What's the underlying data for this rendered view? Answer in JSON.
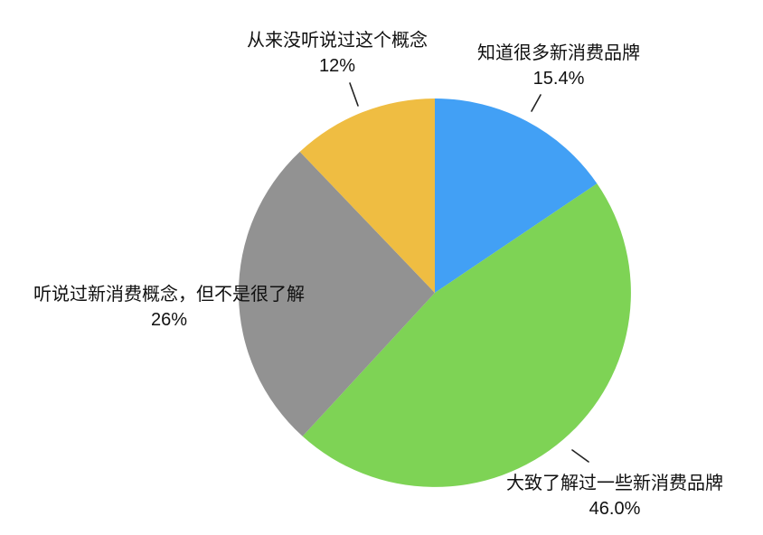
{
  "chart_data": {
    "type": "pie",
    "title": "",
    "direction": "clockwise",
    "start_angle_deg": 0,
    "legend_position": "none",
    "background": "#ffffff",
    "slices": [
      {
        "label": "知道很多新消费品牌",
        "pct_label": "15.4%",
        "value": 15.4,
        "color": "#42A0F5"
      },
      {
        "label": "大致了解过一些新消费品牌",
        "pct_label": "46.0%",
        "value": 46.0,
        "color": "#7ED355"
      },
      {
        "label": "听说过新消费概念，但不是很了解",
        "pct_label": "26%",
        "value": 26,
        "color": "#929292"
      },
      {
        "label": "从来没听说过这个概念",
        "pct_label": "12%",
        "value": 12,
        "color": "#EFBD42"
      }
    ]
  }
}
